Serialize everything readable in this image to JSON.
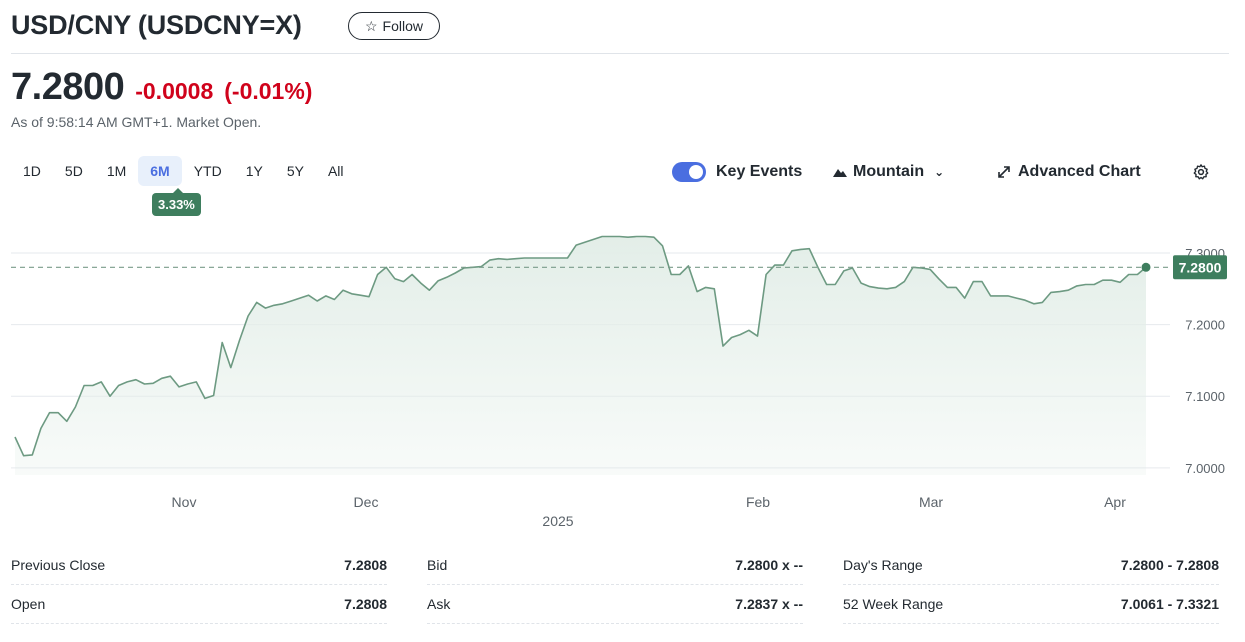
{
  "header": {
    "title": "USD/CNY (USDCNY=X)",
    "follow_label": "Follow"
  },
  "quote": {
    "price": "7.2800",
    "change": "-0.0008",
    "change_pct": "(-0.01%)",
    "as_of": "As of 9:58:14 AM GMT+1. Market Open."
  },
  "ranges": {
    "items": [
      "1D",
      "5D",
      "1M",
      "6M",
      "YTD",
      "1Y",
      "5Y",
      "All"
    ],
    "active": "6M",
    "badge": "3.33%"
  },
  "toolbar": {
    "key_events_label": "Key Events",
    "chart_type_label": "Mountain",
    "advanced_label": "Advanced Chart"
  },
  "colors": {
    "accent": "#4a6ee0",
    "line": "#6d9a82",
    "fill": "#e3eee8",
    "badge": "#3e7e5e",
    "negative": "#d0021b"
  },
  "chart_data": {
    "type": "area",
    "x_labels": [
      "Nov",
      "Dec",
      "2025",
      "Feb",
      "Mar",
      "Apr"
    ],
    "y_ticks": [
      7.0,
      7.1,
      7.2,
      7.3
    ],
    "y_tick_labels": [
      "7.0000",
      "7.1000",
      "7.2000",
      "7.3000"
    ],
    "ylim": [
      6.99,
      7.36
    ],
    "reference_value": 7.28,
    "reference_label": "7.2800",
    "values": [
      7.043,
      7.017,
      7.018,
      7.055,
      7.077,
      7.077,
      7.065,
      7.085,
      7.115,
      7.115,
      7.12,
      7.1,
      7.115,
      7.12,
      7.123,
      7.117,
      7.118,
      7.125,
      7.128,
      7.113,
      7.117,
      7.12,
      7.097,
      7.101,
      7.175,
      7.14,
      7.178,
      7.212,
      7.231,
      7.223,
      7.227,
      7.229,
      7.233,
      7.237,
      7.241,
      7.233,
      7.24,
      7.235,
      7.248,
      7.243,
      7.241,
      7.239,
      7.27,
      7.28,
      7.264,
      7.26,
      7.27,
      7.258,
      7.248,
      7.261,
      7.266,
      7.272,
      7.279,
      7.28,
      7.281,
      7.29,
      7.292,
      7.291,
      7.292,
      7.293,
      7.293,
      7.293,
      7.293,
      7.293,
      7.293,
      7.311,
      7.315,
      7.319,
      7.323,
      7.323,
      7.323,
      7.322,
      7.323,
      7.323,
      7.322,
      7.31,
      7.27,
      7.27,
      7.282,
      7.246,
      7.252,
      7.25,
      7.17,
      7.182,
      7.186,
      7.192,
      7.184,
      7.27,
      7.283,
      7.283,
      7.303,
      7.305,
      7.306,
      7.28,
      7.256,
      7.256,
      7.275,
      7.279,
      7.258,
      7.253,
      7.251,
      7.25,
      7.252,
      7.26,
      7.28,
      7.279,
      7.277,
      7.264,
      7.252,
      7.252,
      7.237,
      7.26,
      7.26,
      7.24,
      7.24,
      7.24,
      7.237,
      7.234,
      7.229,
      7.231,
      7.245,
      7.246,
      7.248,
      7.254,
      7.256,
      7.256,
      7.262,
      7.262,
      7.259,
      7.27,
      7.27,
      7.28
    ]
  },
  "stats": {
    "col1": [
      {
        "label": "Previous Close",
        "value": "7.2808"
      },
      {
        "label": "Open",
        "value": "7.2808"
      }
    ],
    "col2": [
      {
        "label": "Bid",
        "value": "7.2800 x --"
      },
      {
        "label": "Ask",
        "value": "7.2837 x --"
      }
    ],
    "col3": [
      {
        "label": "Day's Range",
        "value": "7.2800 - 7.2808"
      },
      {
        "label": "52 Week Range",
        "value": "7.0061 - 7.3321"
      }
    ]
  }
}
